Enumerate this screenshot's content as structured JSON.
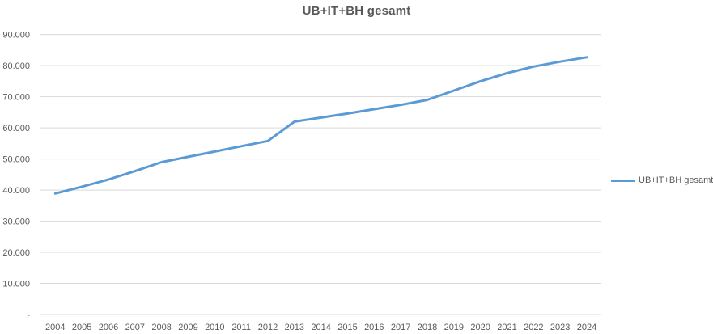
{
  "chart_data": {
    "type": "line",
    "title": "UB+IT+BH gesamt",
    "xlabel": "",
    "ylabel": "",
    "categories": [
      2004,
      2005,
      2006,
      2007,
      2008,
      2009,
      2010,
      2011,
      2012,
      2013,
      2014,
      2015,
      2016,
      2017,
      2018,
      2019,
      2020,
      2021,
      2022,
      2023,
      2024
    ],
    "series": [
      {
        "name": "UB+IT+BH gesamt",
        "color": "#5B9BD5",
        "values": [
          38900,
          41100,
          43400,
          46100,
          49000,
          50700,
          52400,
          54100,
          55800,
          62000,
          63300,
          64600,
          66000,
          67400,
          69000,
          72000,
          75000,
          77600,
          79700,
          81300,
          82700
        ]
      }
    ],
    "ylim": [
      0,
      90000
    ],
    "y_tick_step": 10000,
    "y_tick_labels": [
      "-",
      "10.000",
      "20.000",
      "30.000",
      "40.000",
      "50.000",
      "60.000",
      "70.000",
      "80.000",
      "90.000"
    ],
    "grid": true,
    "legend_position": "right",
    "colors": {
      "series_line": "#5B9BD5",
      "gridline": "#D9D9D9",
      "axis_text": "#595959",
      "title_text": "#595959",
      "background": "#FFFFFF"
    }
  }
}
